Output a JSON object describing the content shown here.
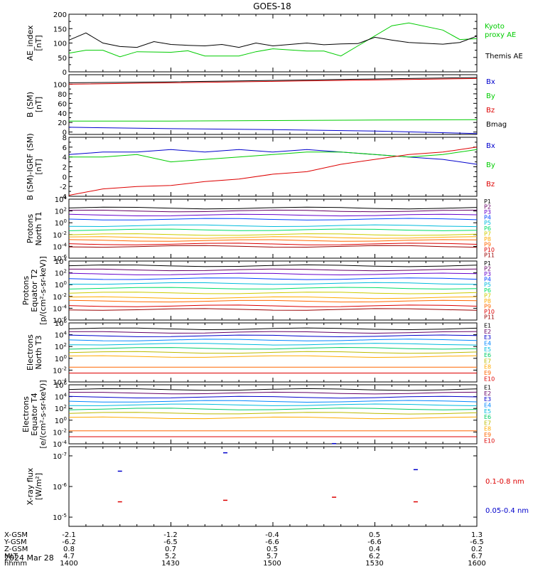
{
  "title": "GOES-18",
  "date_label": "2024 Mar 28",
  "colors": {
    "black": "#000000",
    "red": "#dd0000",
    "green": "#00cc00",
    "blue": "#0000cc",
    "proton_channels": [
      "#000000",
      "#660066",
      "#6600cc",
      "#0044ff",
      "#00bbdd",
      "#00dd66",
      "#cccc00",
      "#ffaa00",
      "#ff6600",
      "#dd0000",
      "#990000"
    ],
    "electron_channels": [
      "#000000",
      "#660066",
      "#0000cc",
      "#0088ff",
      "#00bbdd",
      "#00cc66",
      "#bbbb00",
      "#ffaa00",
      "#ff6600",
      "#dd0000"
    ]
  },
  "ephemeris": {
    "rows": [
      {
        "label": "X-GSM",
        "values": [
          "-2.1",
          "-1.2",
          "-0.4",
          "0.5",
          "1.3"
        ]
      },
      {
        "label": "Y-GSM",
        "values": [
          "-6.2",
          "-6.5",
          "-6.6",
          "-6.6",
          "-6.5"
        ]
      },
      {
        "label": "Z-GSM",
        "values": [
          "0.8",
          "0.7",
          "0.5",
          "0.4",
          "0.2"
        ]
      },
      {
        "label": "MLT",
        "values": [
          "4.7",
          "5.2",
          "5.7",
          "6.2",
          "6.7"
        ]
      },
      {
        "label": "hhmm",
        "values": [
          "1400",
          "1430",
          "1500",
          "1530",
          "1600"
        ]
      }
    ]
  },
  "chart_data": [
    {
      "id": "ae",
      "type": "line",
      "ylabel": [
        "AE_index",
        "[nT]"
      ],
      "ylim": [
        0,
        200
      ],
      "yscale": "linear",
      "yticks": [
        0,
        50,
        100,
        150,
        200
      ],
      "ytick_labels": [
        "0",
        "50",
        "100",
        "150",
        "200"
      ],
      "xlim": [
        0,
        120
      ],
      "x_unit": "minutes after 1400 UT",
      "series": [
        {
          "name": "Kyoto proxy AE",
          "legend_lines": [
            "Kyoto",
            "proxy AE"
          ],
          "color": "#00cc00",
          "x": [
            0,
            5,
            10,
            15,
            20,
            30,
            35,
            40,
            50,
            55,
            60,
            70,
            75,
            80,
            85,
            95,
            100,
            110,
            115,
            120
          ],
          "y": [
            65,
            75,
            75,
            52,
            70,
            68,
            73,
            55,
            55,
            70,
            80,
            72,
            72,
            55,
            90,
            160,
            170,
            145,
            112,
            115
          ]
        },
        {
          "name": "Themis AE",
          "legend_lines": [
            "Themis AE"
          ],
          "color": "#000000",
          "x": [
            0,
            5,
            10,
            15,
            20,
            25,
            30,
            35,
            40,
            45,
            50,
            55,
            60,
            70,
            75,
            80,
            85,
            90,
            95,
            100,
            110,
            115,
            120
          ],
          "y": [
            110,
            135,
            100,
            88,
            85,
            105,
            95,
            92,
            90,
            95,
            85,
            100,
            90,
            100,
            94,
            97,
            98,
            120,
            110,
            102,
            96,
            102,
            124
          ]
        }
      ]
    },
    {
      "id": "bsm",
      "type": "line",
      "ylabel": [
        "B (SM)",
        "[nT]"
      ],
      "ylim": [
        -5,
        120
      ],
      "yscale": "linear",
      "yticks": [
        0,
        20,
        40,
        60,
        80,
        100
      ],
      "ytick_labels": [
        "0",
        "20",
        "40",
        "60",
        "80",
        "100"
      ],
      "xlim": [
        0,
        120
      ],
      "series": [
        {
          "name": "Bx",
          "color": "#0000cc",
          "x": [
            0,
            30,
            60,
            90,
            120
          ],
          "y": [
            10,
            7,
            5,
            2,
            -3
          ]
        },
        {
          "name": "By",
          "color": "#00cc00",
          "x": [
            0,
            30,
            60,
            90,
            120
          ],
          "y": [
            23,
            23,
            24,
            25,
            26
          ]
        },
        {
          "name": "Bz",
          "color": "#dd0000",
          "x": [
            0,
            30,
            60,
            90,
            120
          ],
          "y": [
            100,
            103,
            106,
            109,
            112
          ]
        },
        {
          "name": "Bmag",
          "color": "#000000",
          "x": [
            0,
            30,
            60,
            90,
            120
          ],
          "y": [
            103,
            105,
            108,
            111,
            114
          ]
        }
      ]
    },
    {
      "id": "bdiff",
      "type": "line",
      "ylabel": [
        "B (SM)-IGRF (SM)",
        "[nT]"
      ],
      "ylim": [
        -4,
        8
      ],
      "yscale": "linear",
      "yticks": [
        -4,
        -2,
        0,
        2,
        4,
        6,
        8
      ],
      "ytick_labels": [
        "-4",
        "-2",
        "0",
        "2",
        "4",
        "6",
        "8"
      ],
      "xlim": [
        0,
        120
      ],
      "series": [
        {
          "name": "Bx",
          "color": "#0000cc",
          "x": [
            0,
            10,
            20,
            30,
            40,
            50,
            60,
            70,
            80,
            90,
            100,
            110,
            120
          ],
          "y": [
            4.5,
            5.0,
            5.0,
            5.5,
            5.0,
            5.5,
            5.0,
            5.5,
            5.0,
            4.5,
            4.0,
            3.5,
            2.5
          ]
        },
        {
          "name": "By",
          "color": "#00cc00",
          "x": [
            0,
            10,
            20,
            30,
            40,
            50,
            60,
            70,
            80,
            90,
            100,
            110,
            120
          ],
          "y": [
            4.0,
            4.0,
            4.5,
            3.0,
            3.5,
            4.0,
            4.5,
            5.0,
            5.0,
            4.5,
            4.0,
            4.5,
            5.5
          ]
        },
        {
          "name": "Bz",
          "color": "#dd0000",
          "x": [
            0,
            10,
            20,
            30,
            40,
            50,
            60,
            70,
            80,
            90,
            100,
            110,
            120
          ],
          "y": [
            -3.8,
            -2.5,
            -2.0,
            -1.8,
            -1.0,
            -0.5,
            0.5,
            1.0,
            2.5,
            3.5,
            4.5,
            5.0,
            6.0
          ]
        }
      ]
    },
    {
      "id": "p_north",
      "type": "line",
      "ylabel": [
        "Protons",
        "North T1"
      ],
      "yscale": "log",
      "ylim_exp": [
        -6,
        4
      ],
      "ytick_exps": [
        -6,
        -4,
        -2,
        0,
        2,
        4
      ],
      "xlim": [
        0,
        120
      ],
      "series_labels": [
        "P1",
        "P2",
        "P3",
        "P4",
        "P5",
        "P6",
        "P7",
        "P8",
        "P9",
        "P10",
        "P11"
      ],
      "levels_exp": [
        2.5,
        2.0,
        1.3,
        0.6,
        -0.5,
        -1.2,
        -2.0,
        -2.5,
        -3.0,
        -3.6,
        -4.0
      ]
    },
    {
      "id": "p_equator",
      "type": "line",
      "ylabel": [
        "Protons",
        "Equator T2",
        "[p/(cm²-s-sr-keV)]"
      ],
      "yscale": "log",
      "ylim_exp": [
        -6,
        4
      ],
      "ytick_exps": [
        -6,
        -4,
        -2,
        0,
        2,
        4
      ],
      "xlim": [
        0,
        120
      ],
      "series_labels": [
        "P1",
        "P2",
        "P3",
        "P4",
        "P5",
        "P6",
        "P7",
        "P8",
        "P9",
        "P10",
        "P11"
      ],
      "levels_exp": [
        3.2,
        2.5,
        1.8,
        1.0,
        0.2,
        -0.6,
        -1.4,
        -2.2,
        -2.8,
        -3.6,
        -4.2
      ]
    },
    {
      "id": "e_north",
      "type": "line",
      "ylabel": [
        "Electrons",
        "North T3"
      ],
      "yscale": "log",
      "ylim_exp": [
        -4,
        6
      ],
      "ytick_exps": [
        -4,
        -2,
        0,
        2,
        4,
        6
      ],
      "xlim": [
        0,
        120
      ],
      "series_labels": [
        "E1",
        "E2",
        "E3",
        "E4",
        "E5",
        "E6",
        "E7",
        "E8",
        "E9",
        "E10"
      ],
      "levels_exp": [
        5.0,
        4.4,
        3.8,
        3.1,
        2.4,
        1.7,
        1.0,
        0.3,
        -1.5,
        -2.5
      ]
    },
    {
      "id": "e_equator",
      "type": "line",
      "ylabel": [
        "Electrons",
        "Equator T4",
        "[e/(cm²-s-sr-keV)]"
      ],
      "yscale": "log",
      "ylim_exp": [
        -4,
        6
      ],
      "ytick_exps": [
        -4,
        -2,
        0,
        2,
        4,
        6
      ],
      "xlim": [
        0,
        120
      ],
      "series_labels": [
        "E1",
        "E2",
        "E3",
        "E4",
        "E5",
        "E6",
        "E7",
        "E8",
        "E9",
        "E10"
      ],
      "levels_exp": [
        5.2,
        4.6,
        3.9,
        3.2,
        2.6,
        1.9,
        1.2,
        0.4,
        -1.8,
        -2.8
      ]
    },
    {
      "id": "xray",
      "type": "scatter",
      "ylabel": [
        "X-ray flux",
        "[W/m²]"
      ],
      "yscale": "log",
      "ylim_exp": [
        -7.3,
        -4.7
      ],
      "y_inverted": true,
      "ytick_exps": [
        -7,
        -6,
        -5
      ],
      "xlim": [
        0,
        120
      ],
      "series": [
        {
          "name": "0.1-0.8 nm",
          "color": "#dd0000",
          "x": [
            15,
            46,
            78,
            102
          ],
          "y_exp": [
            -5.5,
            -5.55,
            -5.65,
            -5.5
          ]
        },
        {
          "name": "0.05-0.4 nm",
          "color": "#0000cc",
          "x": [
            15,
            46,
            78,
            102
          ],
          "y_exp": [
            -6.5,
            -7.1,
            -7.4,
            -6.55
          ]
        }
      ]
    }
  ]
}
